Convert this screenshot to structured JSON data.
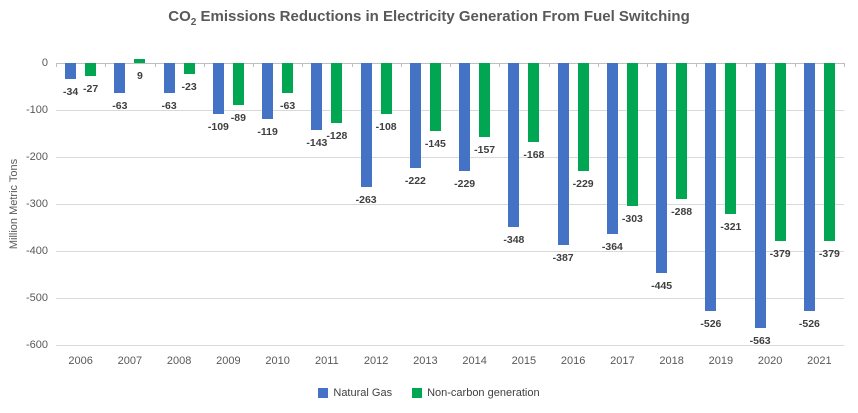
{
  "title": {
    "text_co": "CO",
    "text_sub": "2",
    "text_rest": " Emissions Reductions in Electricity Generation From Fuel Switching"
  },
  "chart_data": {
    "type": "bar",
    "title": "CO2 Emissions Reductions in Electricity Generation From Fuel Switching",
    "categories": [
      "2006",
      "2007",
      "2008",
      "2009",
      "2010",
      "2011",
      "2012",
      "2013",
      "2014",
      "2015",
      "2016",
      "2017",
      "2018",
      "2019",
      "2020",
      "2021"
    ],
    "series": [
      {
        "name": "Natural Gas",
        "color": "#4472C4",
        "values": [
          -34,
          -63,
          -63,
          -109,
          -119,
          -143,
          -263,
          -222,
          -229,
          -348,
          -387,
          -364,
          -445,
          -526,
          -563,
          -526
        ]
      },
      {
        "name": "Non-carbon generation",
        "color": "#00A651",
        "values": [
          -27,
          9,
          -23,
          -89,
          -63,
          -128,
          -108,
          -145,
          -157,
          -168,
          -229,
          -303,
          -288,
          -321,
          -379,
          -379
        ]
      }
    ],
    "xlabel": "",
    "ylabel": "Million Metric Tons",
    "ylim": [
      -600,
      0
    ],
    "yticks": [
      0,
      -100,
      -200,
      -300,
      -400,
      -500,
      -600
    ],
    "grid": true,
    "data_labels": true,
    "legend_position": "bottom",
    "colors": {
      "gridline": "#D9D9D9",
      "axis_line": "#BFBFBF",
      "data_label_text": "#3F3F3F",
      "axis_text": "#595959",
      "title_text": "#595959",
      "background": "#FFFFFF"
    }
  },
  "legend": {
    "items": [
      {
        "label": "Natural Gas",
        "color": "#4472C4"
      },
      {
        "label": "Non-carbon generation",
        "color": "#00A651"
      }
    ]
  }
}
